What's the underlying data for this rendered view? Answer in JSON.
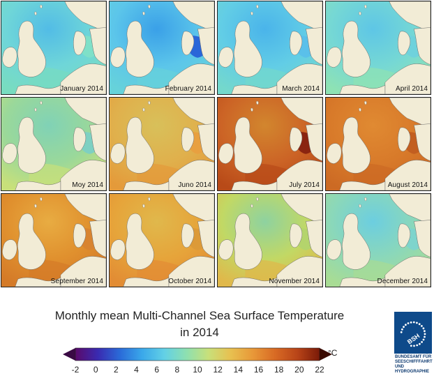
{
  "panels": [
    {
      "label": "January 2014",
      "sea": "#6fd6d8",
      "deep": "#52bce6",
      "coast": "#78dcc0",
      "shelf": "#7fe0c8"
    },
    {
      "label": "February 2014",
      "sea": "#5cc6ea",
      "deep": "#3aa0e8",
      "coast": "#66d2da",
      "shelf": "#2a66d8"
    },
    {
      "label": "March 2014",
      "sea": "#62cde6",
      "deep": "#4ab4ea",
      "coast": "#74d8cc",
      "shelf": "#5ac0ea"
    },
    {
      "label": "April 2014",
      "sea": "#76d8d4",
      "deep": "#5ec6e6",
      "coast": "#8ee2b4",
      "shelf": "#6fd2dc"
    },
    {
      "label": "Moy 2014",
      "sea": "#9ad89a",
      "deep": "#80d2b6",
      "coast": "#c8e07a",
      "shelf": "#7ed0c2"
    },
    {
      "label": "Juno 2014",
      "sea": "#e0b04c",
      "deep": "#d8c05a",
      "coast": "#e49a3a",
      "shelf": "#e8a040"
    },
    {
      "label": "July 2014",
      "sea": "#cc6426",
      "deep": "#d2862e",
      "coast": "#b84a18",
      "shelf": "#8a2410"
    },
    {
      "label": "August 2014",
      "sea": "#d87a2a",
      "deep": "#e08a32",
      "coast": "#cc6a24",
      "shelf": "#c25e20"
    },
    {
      "label": "September 2014",
      "sea": "#e0902e",
      "deep": "#e8ac42",
      "coast": "#d47a28",
      "shelf": "#d88430"
    },
    {
      "label": "October 2014",
      "sea": "#e6a43a",
      "deep": "#e0b84c",
      "coast": "#e28c34",
      "shelf": "#dc9a38"
    },
    {
      "label": "November 2014",
      "sea": "#c2d864",
      "deep": "#8ed2a0",
      "coast": "#e0b84a",
      "shelf": "#b4d46c"
    },
    {
      "label": "December 2014",
      "sea": "#8cd8b8",
      "deep": "#6ccee0",
      "coast": "#a8dc94",
      "shelf": "#7ed4cc"
    }
  ],
  "title": {
    "line1": "Monthly mean Multi-Channel Sea Surface Temperature",
    "line2": "in 2014"
  },
  "colorbar": {
    "ticks": [
      "-2",
      "0",
      "2",
      "4",
      "6",
      "8",
      "10",
      "12",
      "14",
      "16",
      "18",
      "20",
      "22"
    ],
    "unit": "°C",
    "min": -2,
    "max": 22,
    "stops": [
      "#5a0a6a",
      "#3a2ab0",
      "#2a6ad8",
      "#3aa8ea",
      "#62d0e6",
      "#8ee0b0",
      "#c8e07a",
      "#e8c050",
      "#e89838",
      "#d86a24",
      "#b84418",
      "#7a1a08"
    ]
  },
  "logo": {
    "emblem": "BSH",
    "line1": "BUNDESAMT FÜR",
    "line2": "SEESCHIFFFAHRT",
    "line3": "UND",
    "line4": "HYDROGRAPHIE"
  }
}
